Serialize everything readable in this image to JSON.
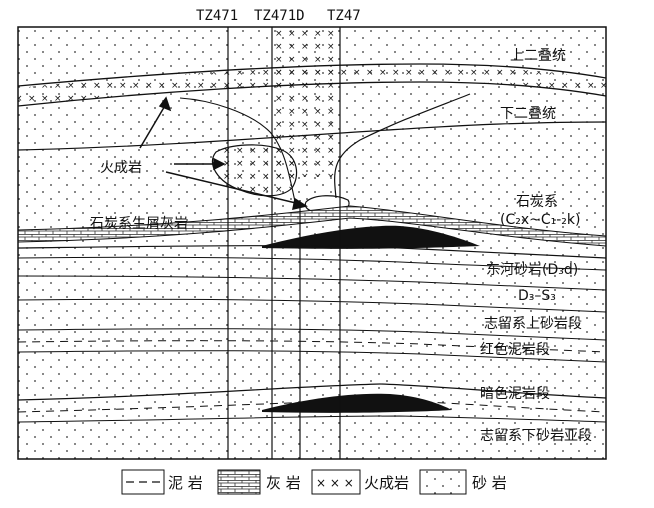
{
  "wells": [
    "TZ471",
    "TZ471D",
    "TZ47"
  ],
  "units": {
    "upper_permian": "上二叠统",
    "lower_permian": "下二叠统",
    "carboniferous": "石炭系",
    "carboniferous_code": "(C₂x~C₁-₂k)",
    "bioclastic_limestone": "石炭系生屑灰岩",
    "igneous": "火成岩",
    "donghe": "东河砂岩(D₃d)",
    "d3_s3": "D₃–S₃",
    "upper_sandstone": "志留系上砂岩段",
    "red_mudstone": "红色泥岩段",
    "dark_mudstone": "暗色泥岩段",
    "lower_sandstone": "志留系下砂岩亚段"
  },
  "legend": [
    {
      "key": "mudstone",
      "label": "泥 岩"
    },
    {
      "key": "limestone",
      "label": "灰 岩"
    },
    {
      "key": "igneous",
      "label": "火成岩"
    },
    {
      "key": "sandstone",
      "label": "砂 岩"
    }
  ]
}
